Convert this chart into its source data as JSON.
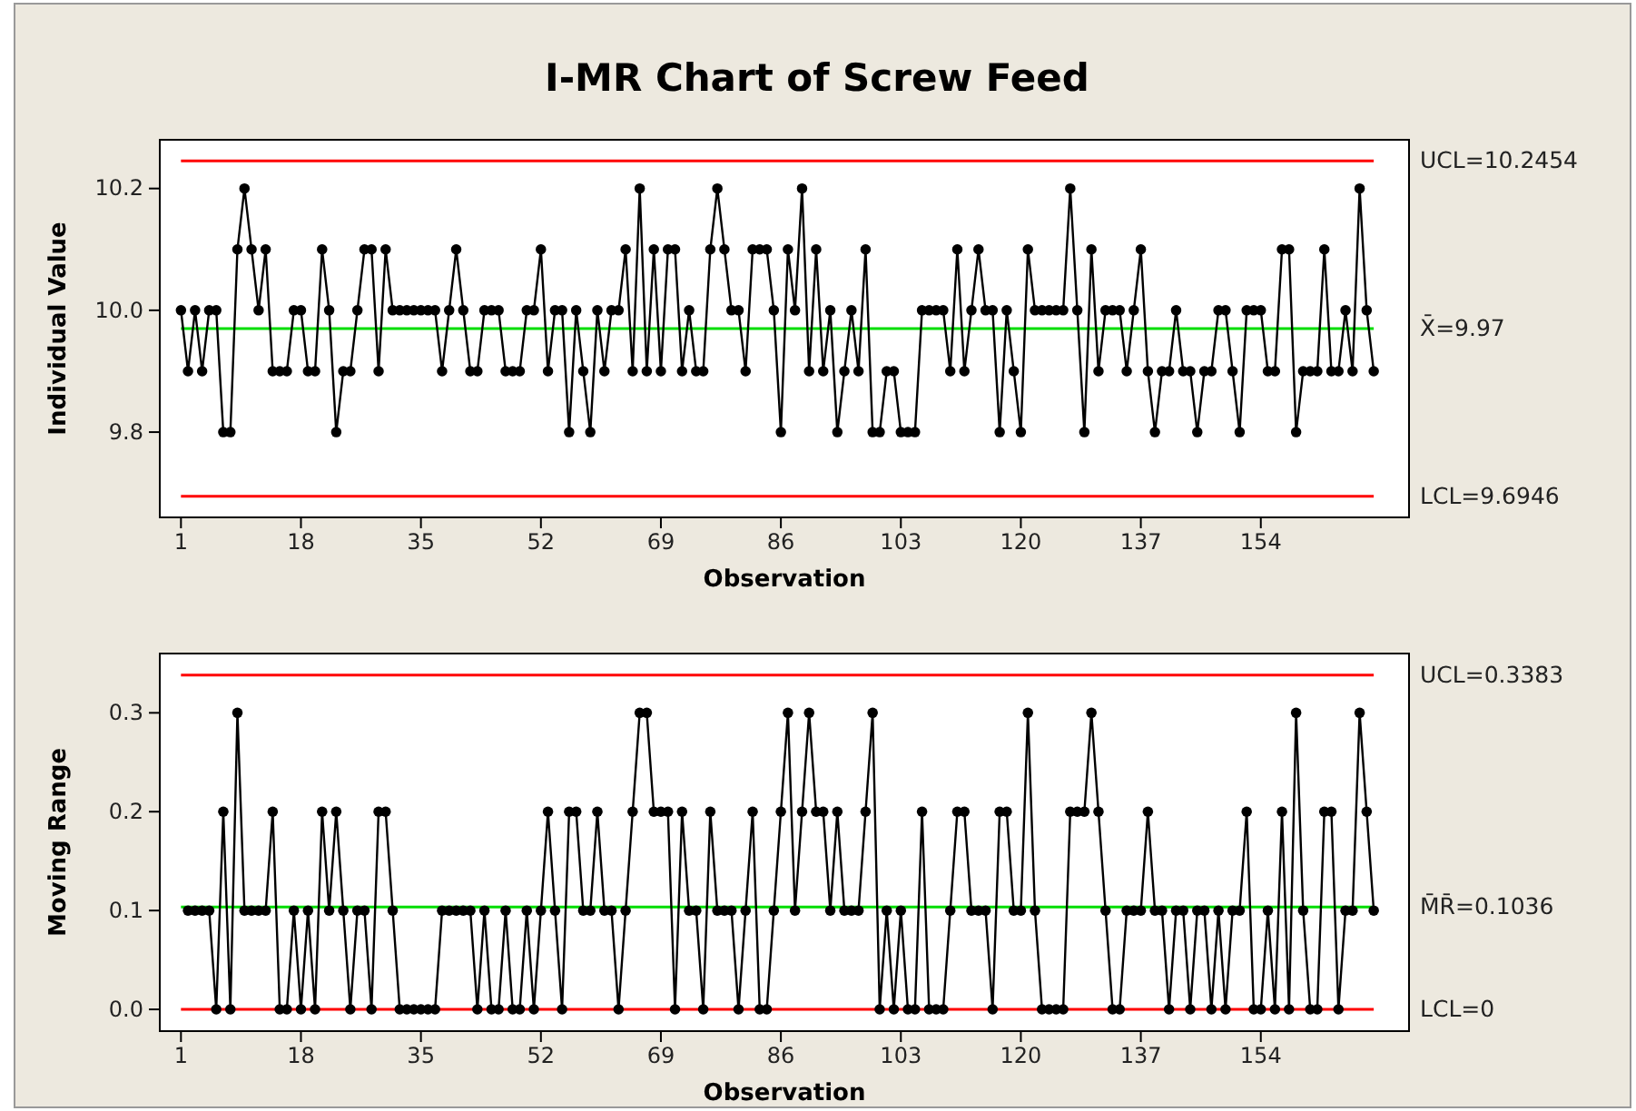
{
  "chart_data": [
    {
      "type": "line",
      "title": "I-MR Chart of Screw Feed",
      "xlabel": "Observation",
      "ylabel": "Individual Value",
      "marker": "circle",
      "line_style": "solid",
      "grid": false,
      "xlim": [
        -2,
        175
      ],
      "xticks": [
        1,
        18,
        35,
        52,
        69,
        86,
        103,
        120,
        137,
        154
      ],
      "ylim": [
        9.66,
        10.28
      ],
      "yticks": [
        9.8,
        {
          "value": 10,
          "label": "10.0"
        },
        10.2
      ],
      "x": [
        1,
        2,
        3,
        4,
        5,
        6,
        7,
        8,
        9,
        10,
        11,
        12,
        13,
        14,
        15,
        16,
        17,
        18,
        19,
        20,
        21,
        22,
        23,
        24,
        25,
        26,
        27,
        28,
        29,
        30,
        31,
        32,
        33,
        34,
        35,
        36,
        37,
        38,
        39,
        40,
        41,
        42,
        43,
        44,
        45,
        46,
        47,
        48,
        49,
        50,
        51,
        52,
        53,
        54,
        55,
        56,
        57,
        58,
        59,
        60,
        61,
        62,
        63,
        64,
        65,
        66,
        67,
        68,
        69,
        70,
        71,
        72,
        73,
        74,
        75,
        76,
        77,
        78,
        79,
        80,
        81,
        82,
        83,
        84,
        85,
        86,
        87,
        88,
        89,
        90,
        91,
        92,
        93,
        94,
        95,
        96,
        97,
        98,
        99,
        100,
        101,
        102,
        103,
        104,
        105,
        106,
        107,
        108,
        109,
        110,
        111,
        112,
        113,
        114,
        115,
        116,
        117,
        118,
        119,
        120,
        121,
        122,
        123,
        124,
        125,
        126,
        127,
        128,
        129,
        130,
        131,
        132,
        133,
        134,
        135,
        136,
        137,
        138,
        139,
        140,
        141,
        142,
        143,
        144,
        145,
        146,
        147,
        148,
        149,
        150,
        151,
        152,
        153,
        154,
        155,
        156,
        157,
        158,
        159,
        160,
        161,
        162,
        163,
        164,
        165,
        166,
        167,
        168,
        169,
        170
      ],
      "series": [
        {
          "color": "#000000",
          "values": [
            10.0,
            9.9,
            10.0,
            9.9,
            10.0,
            10.0,
            9.8,
            9.8,
            10.1,
            10.2,
            10.1,
            10.0,
            10.1,
            9.9,
            9.9,
            9.9,
            10.0,
            10.0,
            9.9,
            9.9,
            10.1,
            10.0,
            9.8,
            9.9,
            9.9,
            10.0,
            10.1,
            10.1,
            9.9,
            10.1,
            10.0,
            10.0,
            10.0,
            10.0,
            10.0,
            10.0,
            10.0,
            9.9,
            10.0,
            10.1,
            10.0,
            9.9,
            9.9,
            10.0,
            10.0,
            10.0,
            9.9,
            9.9,
            9.9,
            10.0,
            10.0,
            10.1,
            9.9,
            10.0,
            10.0,
            9.8,
            10.0,
            9.9,
            9.8,
            10.0,
            9.9,
            10.0,
            10.0,
            10.1,
            9.9,
            10.2,
            9.9,
            10.1,
            9.9,
            10.1,
            10.1,
            9.9,
            10.0,
            9.9,
            9.9,
            10.1,
            10.2,
            10.1,
            10.0,
            10.0,
            9.9,
            10.1,
            10.1,
            10.1,
            10.0,
            9.8,
            10.1,
            10.0,
            10.2,
            9.9,
            10.1,
            9.9,
            10.0,
            9.8,
            9.9,
            10.0,
            9.9,
            10.1,
            9.8,
            9.8,
            9.9,
            9.9,
            9.8,
            9.8,
            9.8,
            10.0,
            10.0,
            10.0,
            10.0,
            9.9,
            10.1,
            9.9,
            10.0,
            10.1,
            10.0,
            10.0,
            9.8,
            10.0,
            9.9,
            9.8,
            10.1,
            10.0,
            10.0,
            10.0,
            10.0,
            10.0,
            10.2,
            10.0,
            9.8,
            10.1,
            9.9,
            10.0,
            10.0,
            10.0,
            9.9,
            10.0,
            10.1,
            9.9,
            9.8,
            9.9,
            9.9,
            10.0,
            9.9,
            9.9,
            9.8,
            9.9,
            9.9,
            10.0,
            10.0,
            9.9,
            9.8,
            10.0,
            10.0,
            10.0,
            9.9,
            9.9,
            10.1,
            10.1,
            9.8,
            9.9,
            9.9,
            9.9,
            10.1,
            9.9,
            9.9,
            10.0,
            9.9,
            10.2,
            10.0,
            9.9
          ]
        }
      ],
      "ref_lines": [
        {
          "axis": "y",
          "value": 10.2454,
          "label": "UCL=10.2454",
          "color": "#ff0000"
        },
        {
          "axis": "y",
          "value": 9.97,
          "label": "X̄=9.97",
          "color": "#00dd00"
        },
        {
          "axis": "y",
          "value": 9.6946,
          "label": "LCL=9.6946",
          "color": "#ff0000"
        }
      ]
    },
    {
      "type": "line",
      "xlabel": "Observation",
      "ylabel": "Moving Range",
      "marker": "circle",
      "line_style": "solid",
      "grid": false,
      "xlim": [
        -2,
        175
      ],
      "xticks": [
        1,
        18,
        35,
        52,
        69,
        86,
        103,
        120,
        137,
        154
      ],
      "ylim": [
        -0.022,
        0.36
      ],
      "yticks": [
        {
          "value": 0,
          "label": "0.0"
        },
        0.1,
        0.2,
        0.3
      ],
      "x": [
        2,
        3,
        4,
        5,
        6,
        7,
        8,
        9,
        10,
        11,
        12,
        13,
        14,
        15,
        16,
        17,
        18,
        19,
        20,
        21,
        22,
        23,
        24,
        25,
        26,
        27,
        28,
        29,
        30,
        31,
        32,
        33,
        34,
        35,
        36,
        37,
        38,
        39,
        40,
        41,
        42,
        43,
        44,
        45,
        46,
        47,
        48,
        49,
        50,
        51,
        52,
        53,
        54,
        55,
        56,
        57,
        58,
        59,
        60,
        61,
        62,
        63,
        64,
        65,
        66,
        67,
        68,
        69,
        70,
        71,
        72,
        73,
        74,
        75,
        76,
        77,
        78,
        79,
        80,
        81,
        82,
        83,
        84,
        85,
        86,
        87,
        88,
        89,
        90,
        91,
        92,
        93,
        94,
        95,
        96,
        97,
        98,
        99,
        100,
        101,
        102,
        103,
        104,
        105,
        106,
        107,
        108,
        109,
        110,
        111,
        112,
        113,
        114,
        115,
        116,
        117,
        118,
        119,
        120,
        121,
        122,
        123,
        124,
        125,
        126,
        127,
        128,
        129,
        130,
        131,
        132,
        133,
        134,
        135,
        136,
        137,
        138,
        139,
        140,
        141,
        142,
        143,
        144,
        145,
        146,
        147,
        148,
        149,
        150,
        151,
        152,
        153,
        154,
        155,
        156,
        157,
        158,
        159,
        160,
        161,
        162,
        163,
        164,
        165,
        166,
        167,
        168,
        169,
        170
      ],
      "series": [
        {
          "color": "#000000",
          "values": [
            0.1,
            0.1,
            0.1,
            0.1,
            0,
            0.2,
            0,
            0.3,
            0.1,
            0.1,
            0.1,
            0.1,
            0.2,
            0,
            0,
            0.1,
            0,
            0.1,
            0,
            0.2,
            0.1,
            0.2,
            0.1,
            0,
            0.1,
            0.1,
            0,
            0.2,
            0.2,
            0.1,
            0,
            0,
            0,
            0,
            0,
            0,
            0.1,
            0.1,
            0.1,
            0.1,
            0.1,
            0,
            0.1,
            0,
            0,
            0.1,
            0,
            0,
            0.1,
            0,
            0.1,
            0.2,
            0.1,
            0,
            0.2,
            0.2,
            0.1,
            0.1,
            0.2,
            0.1,
            0.1,
            0,
            0.1,
            0.2,
            0.3,
            0.3,
            0.2,
            0.2,
            0.2,
            0,
            0.2,
            0.1,
            0.1,
            0,
            0.2,
            0.1,
            0.1,
            0.1,
            0,
            0.1,
            0.2,
            0,
            0,
            0.1,
            0.2,
            0.3,
            0.1,
            0.2,
            0.3,
            0.2,
            0.2,
            0.1,
            0.2,
            0.1,
            0.1,
            0.1,
            0.2,
            0.3,
            0,
            0.1,
            0,
            0.1,
            0,
            0,
            0.2,
            0,
            0,
            0,
            0.1,
            0.2,
            0.2,
            0.1,
            0.1,
            0.1,
            0,
            0.2,
            0.2,
            0.1,
            0.1,
            0.3,
            0.1,
            0,
            0,
            0,
            0,
            0.2,
            0.2,
            0.2,
            0.3,
            0.2,
            0.1,
            0,
            0,
            0.1,
            0.1,
            0.1,
            0.2,
            0.1,
            0.1,
            0,
            0.1,
            0.1,
            0,
            0.1,
            0.1,
            0,
            0.1,
            0,
            0.1,
            0.1,
            0.2,
            0,
            0,
            0.1,
            0,
            0.2,
            0,
            0.3,
            0.1,
            0,
            0,
            0.2,
            0.2,
            0,
            0.1,
            0.1,
            0.3,
            0.2,
            0.1
          ]
        }
      ],
      "ref_lines": [
        {
          "axis": "y",
          "value": 0.3383,
          "label": "UCL=0.3383",
          "color": "#ff0000"
        },
        {
          "axis": "y",
          "value": 0.1036,
          "label": "M̄R̄=0.1036",
          "color": "#00dd00"
        },
        {
          "axis": "y",
          "value": 0,
          "label": "LCL=0",
          "color": "#ff0000"
        }
      ]
    }
  ]
}
